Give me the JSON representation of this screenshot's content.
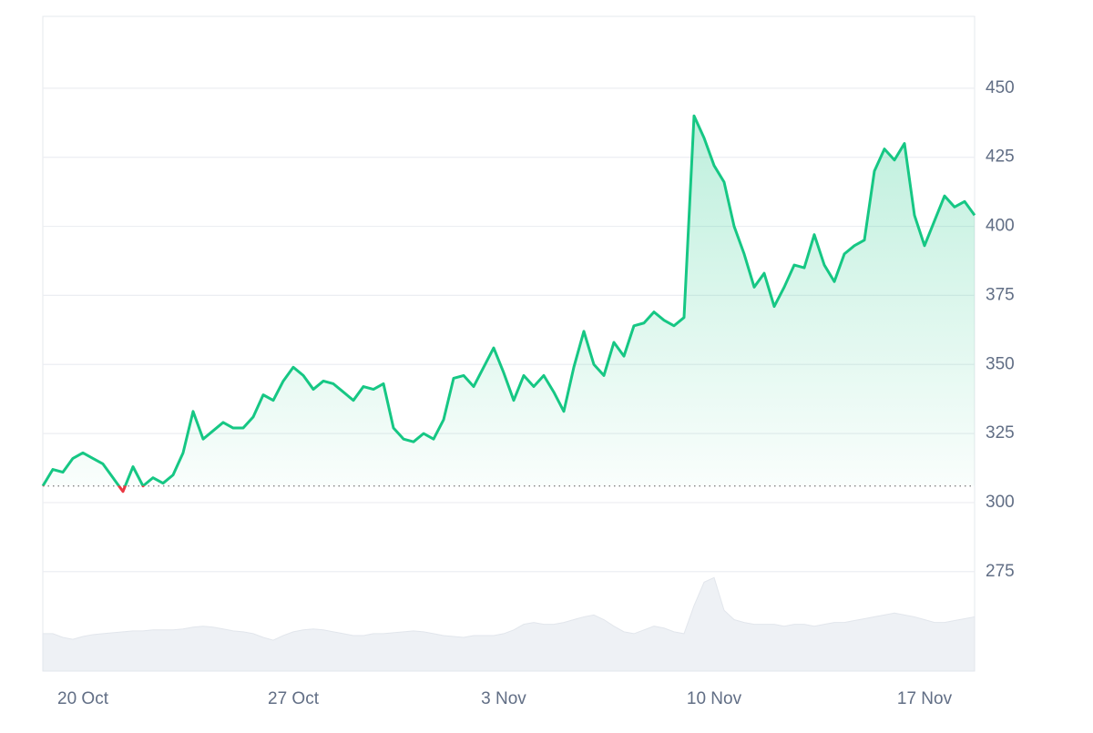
{
  "chart_data": {
    "type": "line",
    "categories": [
      null,
      null,
      null,
      null,
      "20 Oct",
      null,
      null,
      null,
      null,
      null,
      null,
      null,
      null,
      null,
      null,
      null,
      null,
      null,
      null,
      null,
      null,
      null,
      null,
      null,
      null,
      "27 Oct",
      null,
      null,
      null,
      null,
      null,
      null,
      null,
      null,
      null,
      null,
      null,
      null,
      null,
      null,
      null,
      null,
      null,
      null,
      null,
      null,
      "3 Nov",
      null,
      null,
      null,
      null,
      null,
      null,
      null,
      null,
      null,
      null,
      null,
      null,
      null,
      null,
      null,
      null,
      null,
      null,
      null,
      null,
      "10 Nov",
      null,
      null,
      null,
      null,
      null,
      null,
      null,
      null,
      null,
      null,
      null,
      null,
      null,
      null,
      null,
      null,
      null,
      null,
      null,
      null,
      "17 Nov",
      null,
      null,
      null,
      null,
      null
    ],
    "series": [
      {
        "color": "#16c784",
        "down_color": "#ea3943",
        "values": [
          306,
          312,
          311,
          316,
          318,
          316,
          314,
          309,
          304,
          313,
          306,
          309,
          307,
          310,
          318,
          333,
          323,
          326,
          329,
          327,
          327,
          331,
          339,
          337,
          344,
          349,
          346,
          341,
          344,
          343,
          340,
          337,
          342,
          341,
          343,
          327,
          323,
          322,
          325,
          323,
          330,
          345,
          346,
          342,
          349,
          356,
          347,
          337,
          346,
          342,
          346,
          340,
          333,
          349,
          362,
          350,
          346,
          358,
          353,
          364,
          365,
          369,
          366,
          364,
          367,
          440,
          432,
          422,
          416,
          400,
          390,
          378,
          383,
          371,
          378,
          386,
          385,
          397,
          386,
          380,
          390,
          393,
          395,
          420,
          428,
          424,
          430,
          404,
          393,
          402,
          411,
          407,
          409,
          404
        ]
      },
      {
        "color": "#eef1f5",
        "axis": "y2",
        "values": [
          40,
          40,
          36,
          34,
          37,
          39,
          40,
          41,
          42,
          43,
          43,
          44,
          44,
          44,
          45,
          47,
          48,
          47,
          45,
          43,
          42,
          40,
          36,
          33,
          38,
          42,
          44,
          45,
          44,
          42,
          40,
          38,
          38,
          40,
          40,
          41,
          42,
          43,
          42,
          40,
          38,
          37,
          36,
          38,
          38,
          38,
          40,
          44,
          50,
          52,
          50,
          50,
          52,
          55,
          58,
          60,
          55,
          48,
          42,
          40,
          44,
          48,
          46,
          42,
          40,
          70,
          95,
          100,
          65,
          55,
          52,
          50,
          50,
          50,
          48,
          50,
          50,
          48,
          50,
          52,
          52,
          54,
          56,
          58,
          60,
          62,
          60,
          58,
          55,
          52,
          52,
          54,
          56,
          58
        ]
      }
    ],
    "ylim": [
      239,
      476
    ],
    "yticks": [
      275,
      300,
      325,
      350,
      375,
      400,
      425,
      450
    ],
    "y2lim": [
      0,
      700
    ],
    "grid": true
  }
}
